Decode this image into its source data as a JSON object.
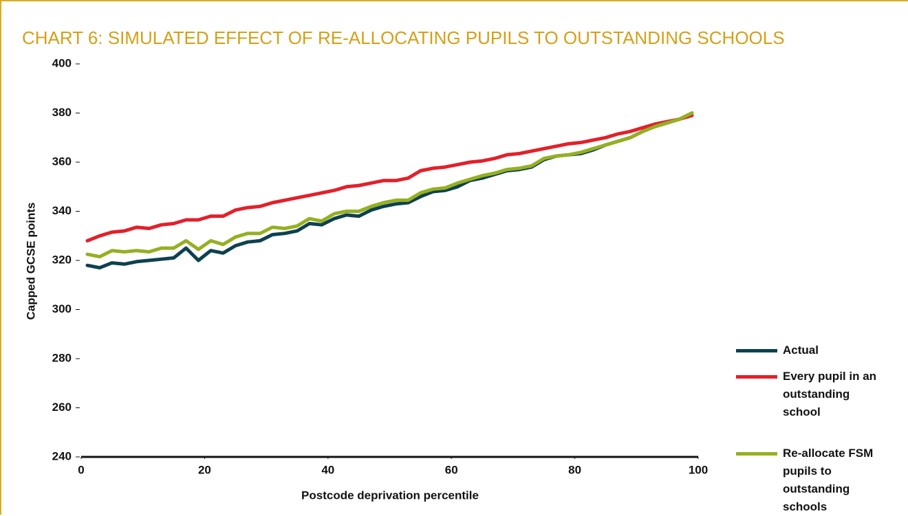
{
  "chart_data": {
    "type": "line",
    "title": "CHART 6: SIMULATED EFFECT OF RE-ALLOCATING PUPILS TO OUTSTANDING SCHOOLS",
    "x_label": "Postcode deprivation percentile",
    "y_label": "Capped GCSE points",
    "x": [
      1,
      3,
      5,
      7,
      9,
      11,
      13,
      15,
      17,
      19,
      21,
      23,
      25,
      27,
      29,
      31,
      33,
      35,
      37,
      39,
      41,
      43,
      45,
      47,
      49,
      51,
      53,
      55,
      57,
      59,
      61,
      63,
      65,
      67,
      69,
      71,
      73,
      75,
      77,
      79,
      81,
      83,
      85,
      87,
      89,
      91,
      93,
      95,
      97,
      99
    ],
    "series": [
      {
        "name": "Actual",
        "color": "#0e4150",
        "values": [
          318,
          317,
          319,
          318.5,
          319.5,
          320,
          320.5,
          321,
          325,
          320,
          324,
          323,
          326,
          327.5,
          328,
          330.5,
          331,
          332,
          335,
          334.5,
          337,
          338.5,
          338,
          340.5,
          342,
          343,
          343.5,
          346,
          348,
          348.5,
          350,
          352.5,
          353.5,
          355,
          356.5,
          357,
          358,
          361,
          362.5,
          363,
          363.5,
          365,
          367,
          368.5,
          370,
          372.5,
          374.5,
          376,
          377.5,
          380
        ]
      },
      {
        "name": "Every pupil in an outstanding school",
        "color": "#e3202a",
        "values": [
          328,
          330,
          331.5,
          332,
          333.5,
          333,
          334.5,
          335,
          336.5,
          336.5,
          338,
          338,
          340.5,
          341.5,
          342,
          343.5,
          344.5,
          345.5,
          346.5,
          347.5,
          348.5,
          350,
          350.5,
          351.5,
          352.5,
          352.5,
          353.5,
          356.5,
          357.5,
          358,
          359,
          360,
          360.5,
          361.5,
          363,
          363.5,
          364.5,
          365.5,
          366.5,
          367.5,
          368,
          369,
          370,
          371.5,
          372.5,
          374,
          375.5,
          376.5,
          377.5,
          379
        ]
      },
      {
        "name": "Re-allocate FSM pupils to outstanding schools",
        "color": "#95b021",
        "values": [
          322.5,
          321.5,
          324,
          323.5,
          324,
          323.5,
          325,
          325,
          328,
          324.5,
          328,
          326.5,
          329.5,
          331,
          331,
          333.5,
          333,
          334,
          337,
          336,
          339,
          340,
          340,
          342,
          343.5,
          344.5,
          344.5,
          347.5,
          349,
          349.5,
          351.5,
          353,
          354.5,
          355.5,
          357,
          357.5,
          358.5,
          361.5,
          362.5,
          363,
          364,
          365.5,
          367,
          368.5,
          370,
          372.5,
          374.5,
          376,
          377.5,
          380
        ]
      }
    ],
    "xlim": [
      0,
      100
    ],
    "xticks": [
      0,
      20,
      40,
      60,
      80,
      100
    ],
    "ylim": [
      240,
      400
    ],
    "yticks": [
      240,
      260,
      280,
      300,
      320,
      340,
      360,
      380,
      400
    ],
    "grid": false
  }
}
